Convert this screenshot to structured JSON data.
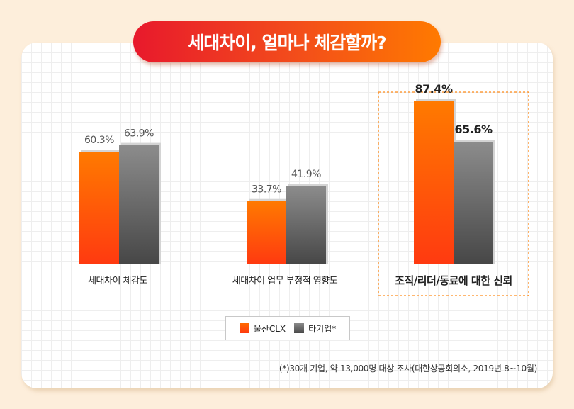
{
  "title": "세대차이, 얼마나 체감할까?",
  "chart_data": {
    "type": "bar",
    "categories": [
      "세대차이 체감도",
      "세대차이 업무 부정적 영향도",
      "조직/리더/동료에 대한 신뢰"
    ],
    "series": [
      {
        "name": "울산CLX",
        "values": [
          60.3,
          33.7,
          87.4
        ],
        "labels": [
          "60.3%",
          "33.7%",
          "87.4%"
        ]
      },
      {
        "name": "타기업*",
        "values": [
          63.9,
          41.9,
          65.6
        ],
        "labels": [
          "63.9%",
          "41.9%",
          "65.6%"
        ]
      }
    ],
    "highlight_category": "조직/리더/동료에 대한 신뢰",
    "ylim": [
      0,
      100
    ],
    "grid": true,
    "legend_position": "bottom-center",
    "colors": {
      "series_a": "#ff5a0a",
      "series_b": "#6b6b6b",
      "highlight_border": "#ff8c1a"
    }
  },
  "legend": {
    "items": [
      "울산CLX",
      "타기업*"
    ]
  },
  "footnote": "(*)30개 기업, 약 13,000명 대상 조사(대한상공회의소, 2019년 8~10월)"
}
